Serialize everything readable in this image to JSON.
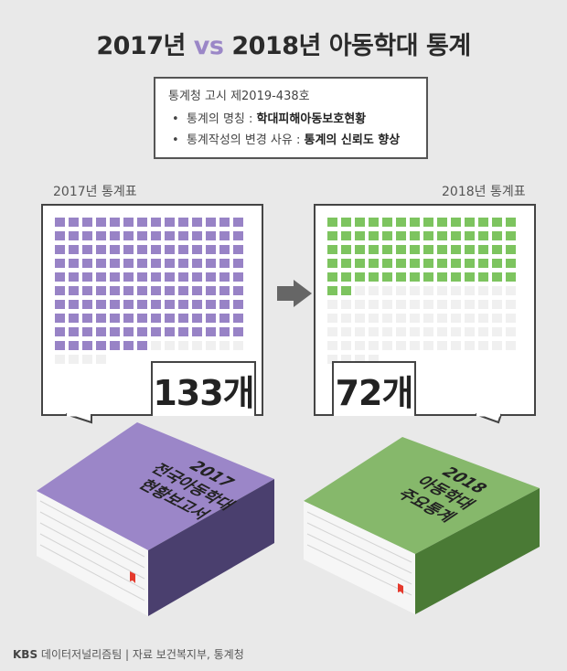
{
  "title": {
    "year_a": "2017년",
    "vs": "vs",
    "year_b": "2018년 아동학대 통계"
  },
  "notice": {
    "head": "통계청 고시 제2019-438호",
    "row1_label": "통계의 명칭 : ",
    "row1_value": "학대피해아동보호현황",
    "row2_label": "통계작성의 변경 사유 : ",
    "row2_value": "통계의 신뢰도 향상"
  },
  "left": {
    "caption": "2017년 통계표",
    "count_label": "133개",
    "filled": 133,
    "total": 144,
    "color": "#9883c6",
    "book_lines": [
      "2017",
      "전국아동학대",
      "현황보고서"
    ],
    "book_colors": {
      "top": "#9b86c8",
      "side": "#4a3f6e"
    }
  },
  "right": {
    "caption": "2018년 통계표",
    "count_label": "72개",
    "filled": 72,
    "total": 144,
    "color": "#7dc45f",
    "book_lines": [
      "2018",
      "아동학대",
      "주요통계"
    ],
    "book_colors": {
      "top": "#86b86b",
      "side": "#4a7a35"
    }
  },
  "footer": {
    "brand": "KBS",
    "text": "데이터저널리즘팀 | 자료 보건복지부, 통계청"
  }
}
